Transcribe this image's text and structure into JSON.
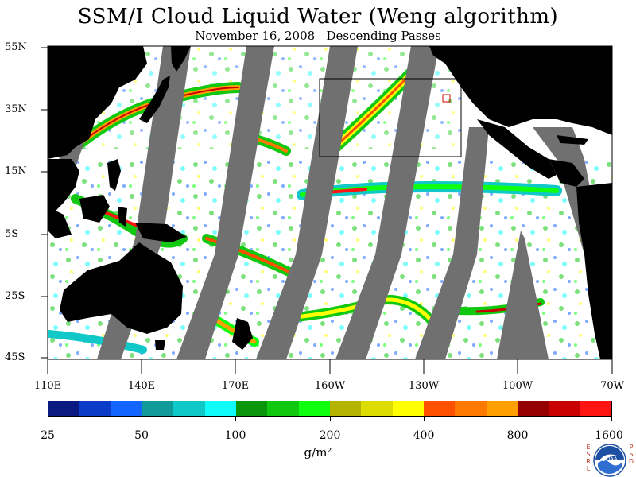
{
  "title": "SSM/I Cloud Liquid Water (Weng algorithm)",
  "subtitle": "November 16, 2008   Descending Passes",
  "lat_labels": [
    "55N",
    "35N",
    "15N",
    "5S",
    "25S",
    "45S"
  ],
  "lon_labels": [
    "110E",
    "140E",
    "170E",
    "160W",
    "130W",
    "100W",
    "70W"
  ],
  "colorbar": {
    "ticks": [
      "25",
      "50",
      "100",
      "200",
      "400",
      "800",
      "1600"
    ],
    "units": "g/m²",
    "colors": [
      "#0a1a80",
      "#0a3cc8",
      "#1464ff",
      "#109a9a",
      "#10c8c8",
      "#10fafa",
      "#0a960a",
      "#10c810",
      "#10ff10",
      "#b4b400",
      "#dcdc00",
      "#ffff00",
      "#ff5000",
      "#ff7800",
      "#ffa000",
      "#960000",
      "#c80000",
      "#ff1414"
    ]
  },
  "map_colors": {
    "land": "#000000",
    "no_data_swath": "#707070",
    "ocean_clear": "#ffffff"
  },
  "logo": {
    "left_letters": "ESRL",
    "right_letters": "PSD",
    "badge": "NOAA"
  }
}
